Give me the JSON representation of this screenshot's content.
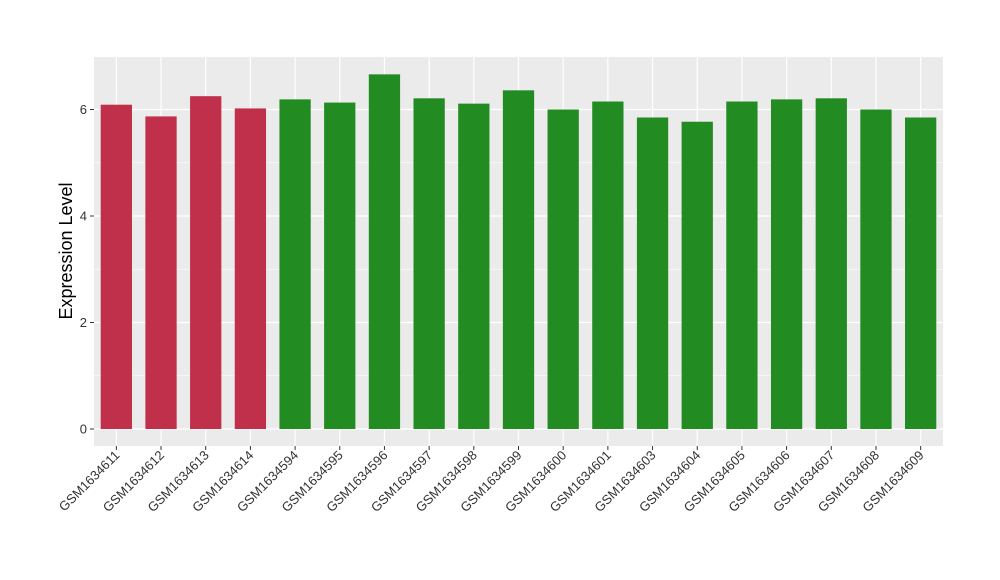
{
  "chart_data": {
    "type": "bar",
    "title": "",
    "xlabel": "",
    "ylabel": "Expression Level",
    "ylim": [
      0,
      7
    ],
    "yticks": [
      0,
      2,
      4,
      6
    ],
    "grid": true,
    "legend": "none",
    "colors": {
      "group1": "#C0304A",
      "group2": "#228B22",
      "panel": "#EBEBEB",
      "gridline": "#FFFFFF"
    },
    "categories": [
      "GSM1634611",
      "GSM1634612",
      "GSM1634613",
      "GSM1634614",
      "GSM1634594",
      "GSM1634595",
      "GSM1634596",
      "GSM1634597",
      "GSM1634598",
      "GSM1634599",
      "GSM1634600",
      "GSM1634601",
      "GSM1634603",
      "GSM1634604",
      "GSM1634605",
      "GSM1634606",
      "GSM1634607",
      "GSM1634608",
      "GSM1634609"
    ],
    "values": [
      6.09,
      5.87,
      6.25,
      6.02,
      6.19,
      6.13,
      6.66,
      6.21,
      6.11,
      6.36,
      6.0,
      6.15,
      5.85,
      5.77,
      6.15,
      6.19,
      6.21,
      6.0,
      5.85
    ],
    "groups": [
      1,
      1,
      1,
      1,
      2,
      2,
      2,
      2,
      2,
      2,
      2,
      2,
      2,
      2,
      2,
      2,
      2,
      2,
      2
    ]
  }
}
